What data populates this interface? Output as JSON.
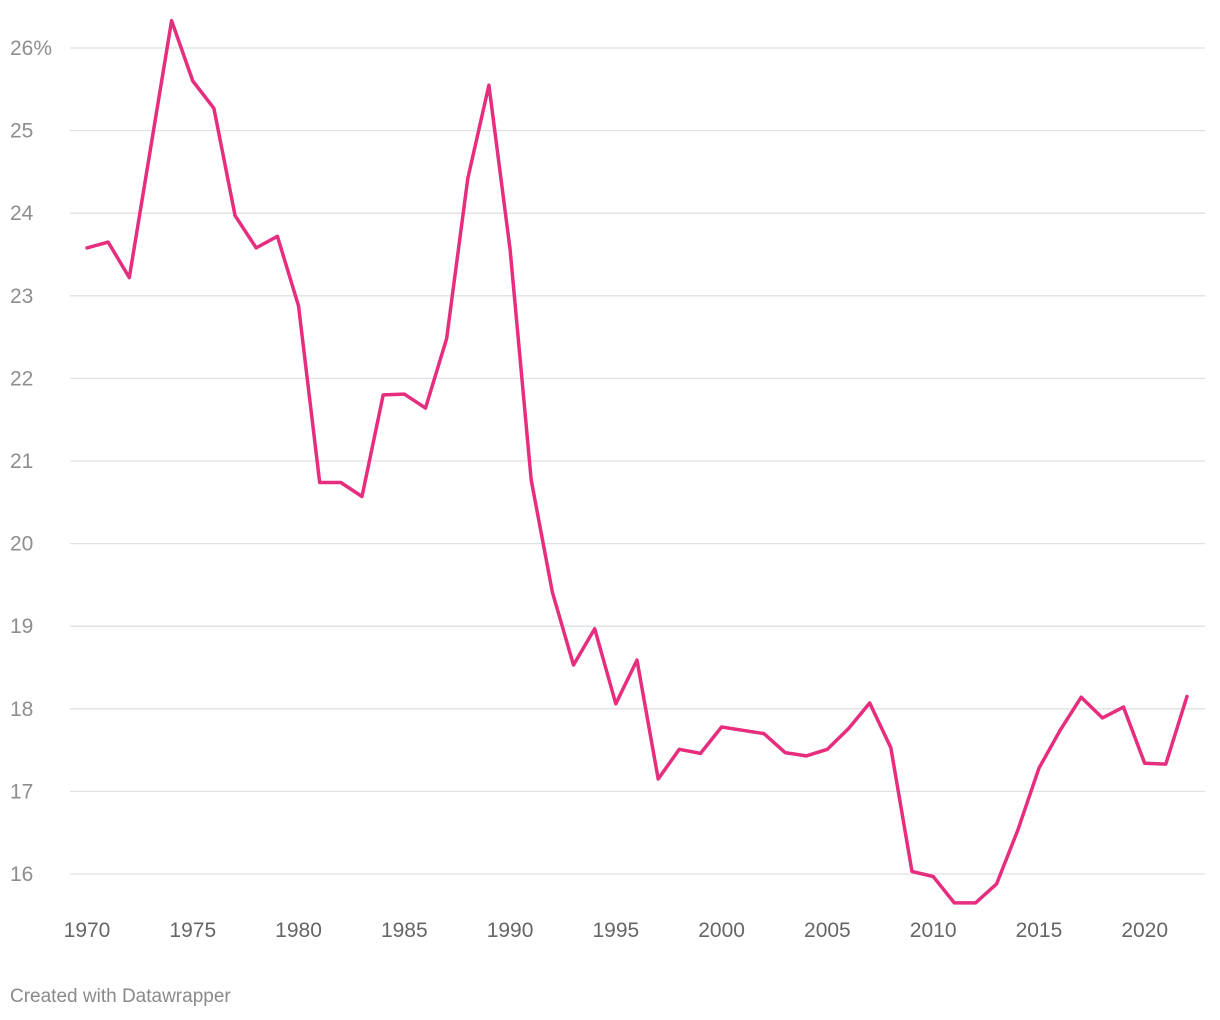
{
  "footer": {
    "credit": "Created with Datawrapper"
  },
  "chart_data": {
    "type": "line",
    "title": "",
    "xlabel": "",
    "ylabel": "",
    "xlim": [
      1970,
      2022
    ],
    "ylim": [
      15.65,
      26.35
    ],
    "grid": true,
    "legend": "none",
    "line_color": "#e62d7e",
    "grid_color": "#e1e1e1",
    "tick_label_color": "#8e8e8e",
    "x_ticks": [
      {
        "value": 1970,
        "label": "1970"
      },
      {
        "value": 1975,
        "label": "1975"
      },
      {
        "value": 1980,
        "label": "1980"
      },
      {
        "value": 1985,
        "label": "1985"
      },
      {
        "value": 1990,
        "label": "1990"
      },
      {
        "value": 1995,
        "label": "1995"
      },
      {
        "value": 2000,
        "label": "2000"
      },
      {
        "value": 2005,
        "label": "2005"
      },
      {
        "value": 2010,
        "label": "2010"
      },
      {
        "value": 2015,
        "label": "2015"
      },
      {
        "value": 2020,
        "label": "2020"
      }
    ],
    "y_ticks": [
      {
        "value": 26,
        "label": "26%"
      },
      {
        "value": 25,
        "label": "25"
      },
      {
        "value": 24,
        "label": "24"
      },
      {
        "value": 23,
        "label": "23"
      },
      {
        "value": 22,
        "label": "22"
      },
      {
        "value": 21,
        "label": "21"
      },
      {
        "value": 20,
        "label": "20"
      },
      {
        "value": 19,
        "label": "19"
      },
      {
        "value": 18,
        "label": "18"
      },
      {
        "value": 17,
        "label": "17"
      },
      {
        "value": 16,
        "label": "16"
      }
    ],
    "x": [
      1970,
      1971,
      1972,
      1973,
      1974,
      1975,
      1976,
      1977,
      1978,
      1979,
      1980,
      1981,
      1982,
      1983,
      1984,
      1985,
      1986,
      1987,
      1988,
      1989,
      1990,
      1991,
      1992,
      1993,
      1994,
      1995,
      1996,
      1997,
      1998,
      1999,
      2000,
      2001,
      2002,
      2003,
      2004,
      2005,
      2006,
      2007,
      2008,
      2009,
      2010,
      2011,
      2012,
      2013,
      2014,
      2015,
      2016,
      2017,
      2018,
      2019,
      2020,
      2021,
      2022
    ],
    "series": [
      {
        "values": [
          23.58,
          23.65,
          23.22,
          24.78,
          26.33,
          25.6,
          25.27,
          23.97,
          23.58,
          23.72,
          22.88,
          20.74,
          20.74,
          20.57,
          21.8,
          21.81,
          21.64,
          22.48,
          24.42,
          25.55,
          23.56,
          20.77,
          19.41,
          18.53,
          18.97,
          18.06,
          18.59,
          17.15,
          17.51,
          17.46,
          17.78,
          17.74,
          17.7,
          17.47,
          17.43,
          17.51,
          17.76,
          18.07,
          17.53,
          16.03,
          15.97,
          15.65,
          15.65,
          15.88,
          16.53,
          17.28,
          17.74,
          18.14,
          17.89,
          18.02,
          17.34,
          17.33,
          18.15
        ]
      }
    ]
  }
}
